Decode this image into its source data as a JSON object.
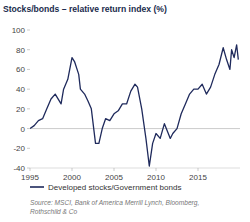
{
  "chart_data": {
    "type": "line",
    "title": "Stocks/bonds – relative return index (%)",
    "source": [
      "Source: MSCI, Bank of America Merrill Lynch, Bloomberg,",
      "Rothschild & Co"
    ],
    "x": [
      1995,
      1995.5,
      1996,
      1996.5,
      1997,
      1997.5,
      1998,
      1998.7,
      1999,
      1999.5,
      2000,
      2000.3,
      2000.8,
      2001,
      2001.5,
      2001.9,
      2002.3,
      2002.8,
      2003.2,
      2003.6,
      2004,
      2004.5,
      2005,
      2005.5,
      2006,
      2006.5,
      2007,
      2007.5,
      2007.8,
      2008.3,
      2008.8,
      2009.2,
      2009.6,
      2010,
      2010.5,
      2011,
      2011.7,
      2012,
      2012.5,
      2013,
      2013.5,
      2014,
      2014.5,
      2015,
      2015.5,
      2016,
      2016.5,
      2017,
      2017.5,
      2018,
      2018.4,
      2018.8,
      2019,
      2019.3,
      2019.6,
      2019.8
    ],
    "series": [
      {
        "name": "Developed stocks/Government bonds",
        "color": "#1f2a5c",
        "values": [
          0,
          3,
          8,
          10,
          20,
          30,
          35,
          25,
          40,
          50,
          72,
          68,
          55,
          40,
          35,
          28,
          20,
          -15,
          -15,
          0,
          10,
          8,
          15,
          18,
          25,
          25,
          38,
          45,
          42,
          20,
          -10,
          -38,
          -15,
          -5,
          -10,
          5,
          -10,
          -5,
          0,
          15,
          25,
          35,
          40,
          40,
          45,
          35,
          42,
          55,
          65,
          82,
          70,
          60,
          80,
          72,
          85,
          70
        ]
      }
    ],
    "xlim": [
      1995,
      2020
    ],
    "xticks": [
      1995,
      2000,
      2005,
      2010,
      2015
    ],
    "ylim": [
      -40,
      100
    ],
    "yticks": [
      -40,
      -20,
      0,
      20,
      40,
      60,
      80,
      100
    ],
    "legend": "bottom"
  }
}
